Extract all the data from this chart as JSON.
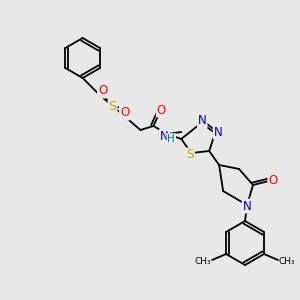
{
  "bg_color": "#e8e8e8",
  "bond_color": "#000000",
  "bond_lw": 1.3,
  "atom_colors": {
    "N": "#0000cc",
    "O": "#ff0000",
    "S": "#bbaa00",
    "C": "#000000",
    "H": "#008080"
  },
  "font_size": 8.5
}
